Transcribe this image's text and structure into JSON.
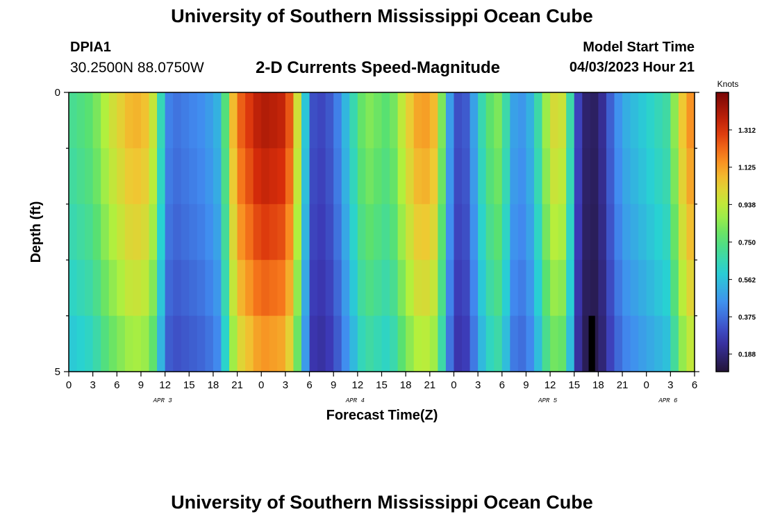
{
  "header": {
    "title": "University of Southern Mississippi Ocean Cube",
    "station_id": "DPIA1",
    "station_coords": "30.2500N  88.0750W",
    "plot_title": "2-D Currents Speed-Magnitude",
    "model_start_label": "Model Start Time",
    "model_start_value": "04/03/2023 Hour 21"
  },
  "footer": {
    "title": "University of Southern Mississippi Ocean Cube"
  },
  "chart_data": {
    "type": "heatmap",
    "title": "2-D Currents Speed-Magnitude",
    "xlabel": "Forecast Time(Z)",
    "ylabel": "Depth (ft)",
    "x_tick_labels": [
      "0",
      "3",
      "6",
      "9",
      "12",
      "15",
      "18",
      "21",
      "0",
      "3",
      "6",
      "9",
      "12",
      "15",
      "18",
      "21",
      "0",
      "3",
      "6",
      "9",
      "12",
      "15",
      "18",
      "21",
      "0",
      "3",
      "6"
    ],
    "date_labels": [
      {
        "label": "APR 3",
        "tick_index": 3.9
      },
      {
        "label": "APR 4",
        "tick_index": 11.9
      },
      {
        "label": "APR 5",
        "tick_index": 19.9
      },
      {
        "label": "APR 6",
        "tick_index": 24.9
      }
    ],
    "y_tick_labels": [
      {
        "label": "0",
        "depth": 0
      },
      {
        "label": "5",
        "depth": 5
      }
    ],
    "depth_range": [
      0,
      5
    ],
    "depth_layers": 5,
    "hours_start": 0,
    "hours_end": 78,
    "colorbar": {
      "title": "Knots",
      "ticks": [
        "0.188",
        "0.375",
        "0.562",
        "0.750",
        "0.938",
        "1.125",
        "1.312"
      ],
      "range": [
        0.1,
        1.5
      ]
    },
    "speed_keyframes": [
      {
        "hour": 0,
        "speed": 0.7
      },
      {
        "hour": 3,
        "speed": 0.78
      },
      {
        "hour": 5,
        "speed": 0.95
      },
      {
        "hour": 8,
        "speed": 1.1
      },
      {
        "hour": 10,
        "speed": 1.05
      },
      {
        "hour": 11,
        "speed": 0.85
      },
      {
        "hour": 12,
        "speed": 0.45
      },
      {
        "hour": 13,
        "speed": 0.38
      },
      {
        "hour": 17,
        "speed": 0.45
      },
      {
        "hour": 19,
        "speed": 0.55
      },
      {
        "hour": 20,
        "speed": 0.95
      },
      {
        "hour": 21,
        "speed": 1.2
      },
      {
        "hour": 24,
        "speed": 1.4
      },
      {
        "hour": 27,
        "speed": 1.35
      },
      {
        "hour": 28,
        "speed": 1.15
      },
      {
        "hour": 29,
        "speed": 0.8
      },
      {
        "hour": 30,
        "speed": 0.35
      },
      {
        "hour": 31,
        "speed": 0.28
      },
      {
        "hour": 33,
        "speed": 0.35
      },
      {
        "hour": 35,
        "speed": 0.6
      },
      {
        "hour": 37,
        "speed": 0.85
      },
      {
        "hour": 40,
        "speed": 0.75
      },
      {
        "hour": 42,
        "speed": 1.0
      },
      {
        "hour": 44,
        "speed": 1.15
      },
      {
        "hour": 46,
        "speed": 1.05
      },
      {
        "hour": 47,
        "speed": 0.6
      },
      {
        "hour": 48,
        "speed": 0.35
      },
      {
        "hour": 49,
        "speed": 0.28
      },
      {
        "hour": 50,
        "speed": 0.4
      },
      {
        "hour": 52,
        "speed": 0.75
      },
      {
        "hour": 54,
        "speed": 0.85
      },
      {
        "hour": 55,
        "speed": 0.5
      },
      {
        "hour": 57,
        "speed": 0.45
      },
      {
        "hour": 59,
        "speed": 0.75
      },
      {
        "hour": 60,
        "speed": 1.0
      },
      {
        "hour": 62,
        "speed": 0.95
      },
      {
        "hour": 63,
        "speed": 0.4
      },
      {
        "hour": 64,
        "speed": 0.18
      },
      {
        "hour": 66,
        "speed": 0.15
      },
      {
        "hour": 67,
        "speed": 0.3
      },
      {
        "hour": 69,
        "speed": 0.5
      },
      {
        "hour": 72,
        "speed": 0.6
      },
      {
        "hour": 75,
        "speed": 0.7
      },
      {
        "hour": 76,
        "speed": 1.0
      },
      {
        "hour": 78,
        "speed": 1.2
      }
    ],
    "depth_factors": [
      1.0,
      0.97,
      0.93,
      0.88,
      0.82
    ],
    "gaps": [
      {
        "hour_start": 64.8,
        "hour_end": 65.6,
        "depth_start": 4,
        "depth_end": 5
      }
    ]
  }
}
